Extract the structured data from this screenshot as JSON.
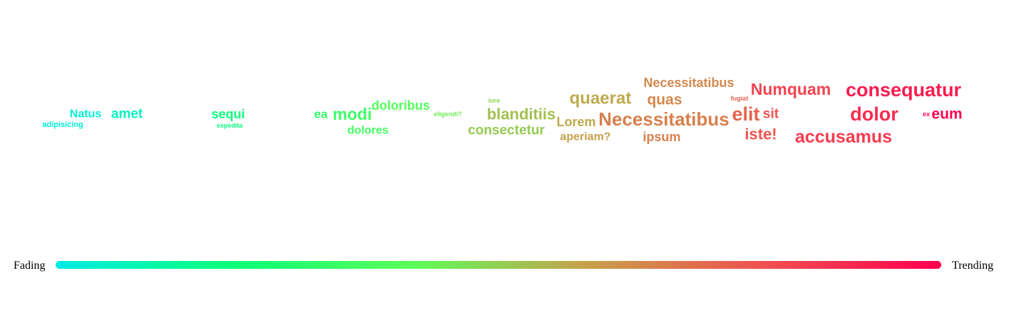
{
  "chart_data": {
    "type": "word-cloud",
    "legend": {
      "left_label": "Fading",
      "right_label": "Trending",
      "gradient_colors": [
        "#00ebe6",
        "#0aff78",
        "#5aff5a",
        "#c8a04b",
        "#f05050",
        "#ff0050"
      ]
    },
    "words": [
      {
        "text": "Natus",
        "trend": 0.03,
        "weight": 16
      },
      {
        "text": "adipisicing",
        "trend": 0.02,
        "weight": 11
      },
      {
        "text": "amet",
        "trend": 0.07,
        "weight": 19
      },
      {
        "text": "sequi",
        "trend": 0.19,
        "weight": 18
      },
      {
        "text": "expedita",
        "trend": 0.19,
        "weight": 9
      },
      {
        "text": "ea",
        "trend": 0.3,
        "weight": 17
      },
      {
        "text": "modi",
        "trend": 0.33,
        "weight": 23
      },
      {
        "text": "doloribus",
        "trend": 0.38,
        "weight": 18
      },
      {
        "text": "dolores",
        "trend": 0.35,
        "weight": 16
      },
      {
        "text": "eligendi?",
        "trend": 0.44,
        "weight": 9
      },
      {
        "text": "iure",
        "trend": 0.49,
        "weight": 9
      },
      {
        "text": "blanditiis",
        "trend": 0.53,
        "weight": 22
      },
      {
        "text": "consectetur",
        "trend": 0.51,
        "weight": 19
      },
      {
        "text": "quaerat",
        "trend": 0.58,
        "weight": 24
      },
      {
        "text": "Lorem",
        "trend": 0.58,
        "weight": 18
      },
      {
        "text": "aperiam?",
        "trend": 0.6,
        "weight": 16
      },
      {
        "text": "Necessitatibus",
        "trend": 0.66,
        "weight": 18
      },
      {
        "text": "quas",
        "trend": 0.66,
        "weight": 21
      },
      {
        "text": "Necessitatibus",
        "trend": 0.68,
        "weight": 26
      },
      {
        "text": "ipsum",
        "trend": 0.68,
        "weight": 18
      },
      {
        "text": "fugiat",
        "trend": 0.75,
        "weight": 9
      },
      {
        "text": "Numquam",
        "trend": 0.83,
        "weight": 23
      },
      {
        "text": "elit",
        "trend": 0.75,
        "weight": 27
      },
      {
        "text": "sit",
        "trend": 0.8,
        "weight": 19
      },
      {
        "text": "iste!",
        "trend": 0.79,
        "weight": 22
      },
      {
        "text": "accusamus",
        "trend": 0.85,
        "weight": 25
      },
      {
        "text": "consequatur",
        "trend": 0.93,
        "weight": 27
      },
      {
        "text": "dolor",
        "trend": 0.89,
        "weight": 27
      },
      {
        "text": "ex",
        "trend": 0.98,
        "weight": 9
      },
      {
        "text": "eum",
        "trend": 0.99,
        "weight": 21
      }
    ]
  }
}
